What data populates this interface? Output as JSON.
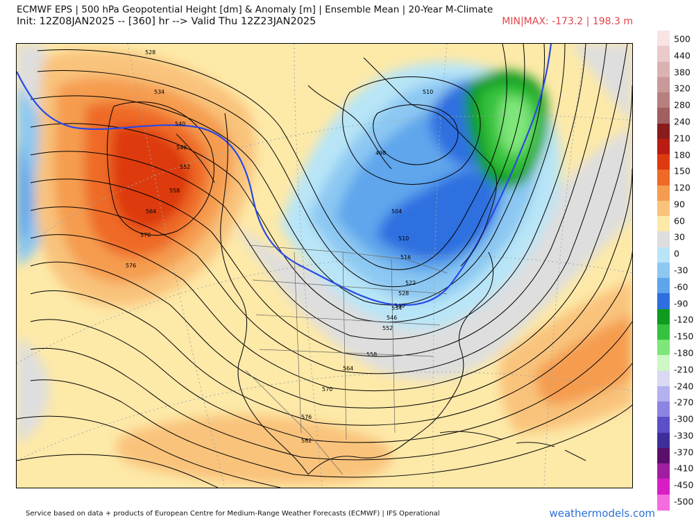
{
  "header": {
    "title": "ECMWF EPS | 500 hPa Geopotential Height [dm] & Anomaly [m] | Ensemble Mean | 20-Year M-Climate",
    "init": "Init: 12Z08JAN2025 -- [360] hr --> Valid Thu 12Z23JAN2025",
    "minmax": "MIN|MAX: -173.2 | 198.3 m",
    "minmax_color": "#e0454d"
  },
  "map": {
    "contour_labels": [
      "528",
      "534",
      "540",
      "546",
      "552",
      "558",
      "564",
      "570",
      "576",
      "510",
      "498",
      "504",
      "510",
      "516",
      "522",
      "528",
      "534",
      "540",
      "546",
      "552",
      "558",
      "564",
      "570",
      "576",
      "582"
    ]
  },
  "colorbar": {
    "labels": [
      "500",
      "440",
      "380",
      "320",
      "280",
      "240",
      "210",
      "180",
      "150",
      "120",
      "90",
      "60",
      "30",
      "0",
      "-30",
      "-60",
      "-90",
      "-120",
      "-150",
      "-180",
      "-210",
      "-240",
      "-270",
      "-300",
      "-330",
      "-370",
      "-410",
      "-450",
      "-500"
    ],
    "colors": [
      "#f9e3e3",
      "#eacaca",
      "#dab2b2",
      "#c99999",
      "#b87f7f",
      "#a06060",
      "#8a1c1c",
      "#b81c12",
      "#dd3a10",
      "#ee6a25",
      "#f59c50",
      "#f9c37b",
      "#fde9a8",
      "#dedede",
      "#b8e5f7",
      "#8cc8f2",
      "#5ea6ec",
      "#2d6fe0",
      "#0e9b1e",
      "#36c23e",
      "#7fe67a",
      "#cdf7c4",
      "#d9d9f4",
      "#b3b1ee",
      "#8b84e2",
      "#5c4fc8",
      "#3c2f9a",
      "#5a0f6a",
      "#a01da0",
      "#d81fc5",
      "#f46ce0"
    ]
  },
  "footer": {
    "credit": "Service based on data + products of European Centre for Medium-Range Weather Forecasts (ECMWF) | IFS Operational",
    "brand": "weathermodels.com"
  }
}
